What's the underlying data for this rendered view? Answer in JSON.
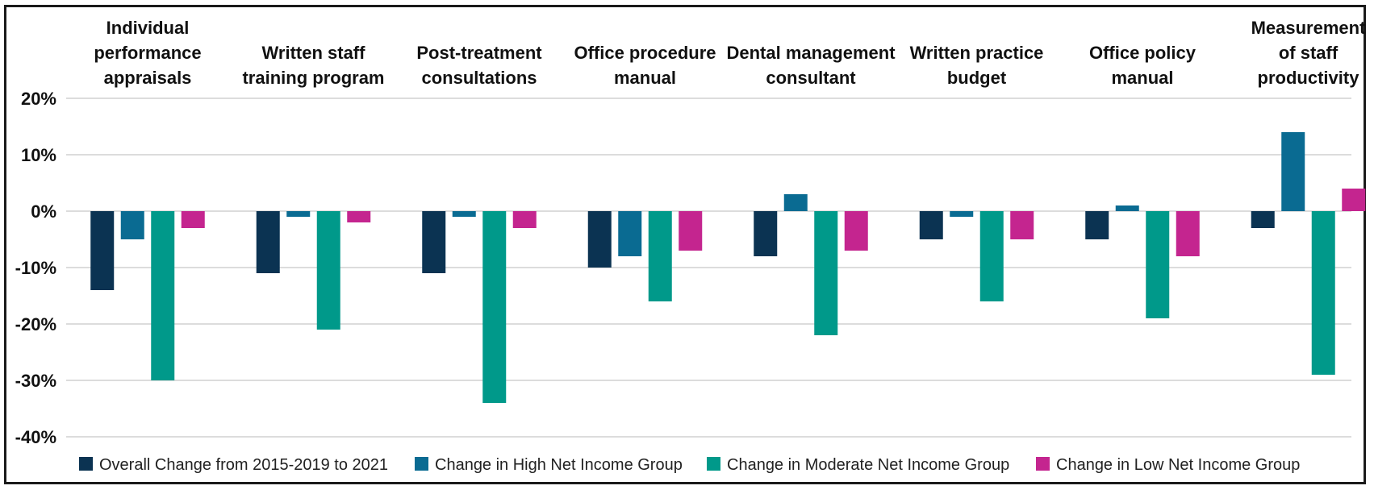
{
  "chart_data": {
    "type": "bar",
    "categories": [
      [
        "Individual",
        "performance",
        "appraisals"
      ],
      [
        "Written staff",
        "training program"
      ],
      [
        "Post-treatment",
        "consultations"
      ],
      [
        "Office procedure",
        "manual"
      ],
      [
        "Dental management",
        "consultant"
      ],
      [
        "Written practice",
        "budget"
      ],
      [
        "Office policy",
        "manual"
      ],
      [
        "Measurement",
        "of staff",
        "productivity"
      ]
    ],
    "series": [
      {
        "name": "Overall Change from 2015-2019 to 2021",
        "color": "#0b3352",
        "values": [
          -14,
          -11,
          -11,
          -10,
          -8,
          -5,
          -5,
          -3
        ]
      },
      {
        "name": "Change in High Net Income Group",
        "color": "#0a6b92",
        "values": [
          -5,
          -1,
          -1,
          -8,
          3,
          -1,
          1,
          14
        ]
      },
      {
        "name": "Change in Moderate Net Income Group",
        "color": "#00998a",
        "values": [
          -30,
          -21,
          -34,
          -16,
          -22,
          -16,
          -19,
          -29
        ]
      },
      {
        "name": "Change in Low Net Income Group",
        "color": "#c4258f",
        "values": [
          -3,
          -2,
          -3,
          -7,
          -7,
          -5,
          -8,
          4
        ]
      }
    ],
    "yticks": [
      "20%",
      "10%",
      "0%",
      "-10%",
      "-20%",
      "-30%",
      "-40%"
    ],
    "ytick_values": [
      20,
      10,
      0,
      -10,
      -20,
      -30,
      -40
    ],
    "ylim": [
      -40,
      20
    ],
    "grid": true,
    "legend_position": "bottom"
  }
}
